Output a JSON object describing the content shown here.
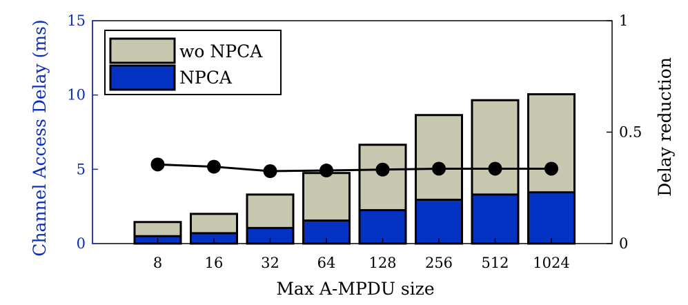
{
  "chart_data": {
    "type": "bar",
    "stacked": "overlay",
    "categories": [
      "8",
      "16",
      "32",
      "64",
      "128",
      "256",
      "512",
      "1024"
    ],
    "series": [
      {
        "name": "wo NPCA",
        "axis": "left",
        "color": "#c8c8b0",
        "values": [
          1.45,
          2.0,
          3.3,
          4.75,
          6.65,
          8.65,
          9.65,
          10.05
        ]
      },
      {
        "name": "NPCA",
        "axis": "left",
        "color": "#0433c4",
        "values": [
          0.5,
          0.7,
          1.05,
          1.55,
          2.25,
          2.95,
          3.3,
          3.45
        ]
      },
      {
        "name": "",
        "type": "line",
        "axis": "right",
        "color": "#000000",
        "values": [
          0.355,
          0.345,
          0.325,
          0.328,
          0.332,
          0.336,
          0.336,
          0.336
        ]
      }
    ],
    "xlabel": "Max A-MPDU size",
    "ylabel": "Channel Access Delay (ms)",
    "ylabel_right": "Delay reduction",
    "ylim": [
      0,
      15
    ],
    "ylim_right": [
      0,
      1
    ],
    "yticks": [
      "0",
      "5",
      "10",
      "15"
    ],
    "yticks_right": [
      "0",
      "0.5",
      "1"
    ],
    "grid": false,
    "legend_position": "top-left",
    "colors": {
      "left_axis": "#0b2dbf",
      "right_axis": "#000000"
    }
  }
}
